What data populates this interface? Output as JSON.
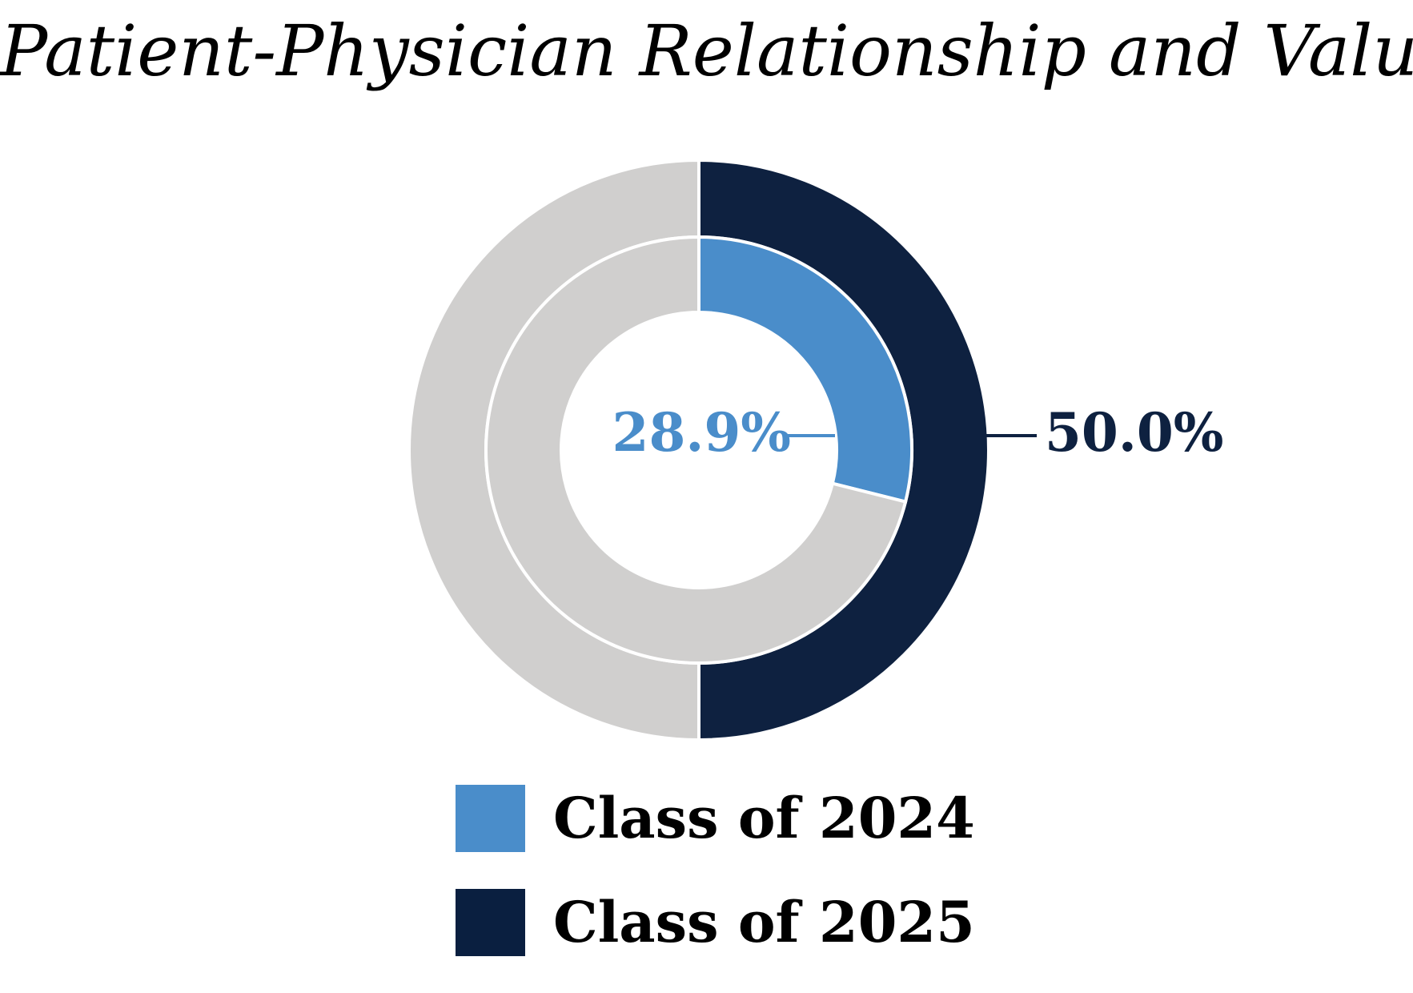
{
  "chart_data": {
    "type": "pie",
    "subtype": "nested-donut",
    "title": "Patient-Physician Relationship and Value",
    "series": [
      {
        "name": "Class of 2024",
        "value": 28.9,
        "label": "28.9%",
        "color": "#4a8dca",
        "ring": "inner"
      },
      {
        "name": "Class of 2025",
        "value": 50.0,
        "label": "50.0%",
        "color": "#0e2140",
        "ring": "outer"
      }
    ],
    "remainder_color": "#d0cfce",
    "legend_position": "bottom"
  },
  "legend": {
    "items": [
      {
        "label": "Class of 2024",
        "color": "#4a8dca"
      },
      {
        "label": "Class of 2025",
        "color": "#0a1f40"
      }
    ]
  }
}
